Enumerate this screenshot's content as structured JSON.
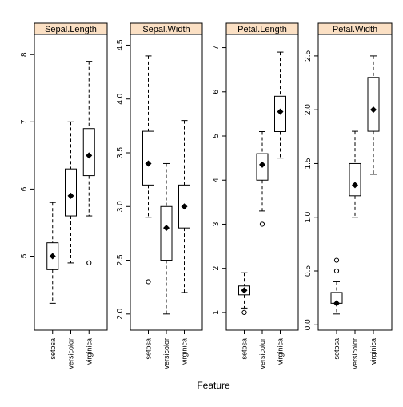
{
  "chart_data": {
    "type": "boxplot",
    "xlabel": "Feature",
    "categories": [
      "setosa",
      "versicolor",
      "virginica"
    ],
    "strip_color": "#fbe0c4",
    "panels": [
      {
        "title": "Sepal.Length",
        "ylim": [
          3.9,
          8.3
        ],
        "yticks": [
          5,
          6,
          7,
          8
        ],
        "groups": [
          {
            "category": "setosa",
            "lower_whisker": 4.3,
            "q1": 4.8,
            "median": 5.0,
            "q3": 5.2,
            "upper_whisker": 5.8,
            "mean": 5.0,
            "outliers": []
          },
          {
            "category": "versicolor",
            "lower_whisker": 4.9,
            "q1": 5.6,
            "median": 5.9,
            "q3": 6.3,
            "upper_whisker": 7.0,
            "mean": 5.9,
            "outliers": []
          },
          {
            "category": "virginica",
            "lower_whisker": 5.6,
            "q1": 6.2,
            "median": 6.5,
            "q3": 6.9,
            "upper_whisker": 7.9,
            "mean": 6.5,
            "outliers": [
              4.9
            ]
          }
        ]
      },
      {
        "title": "Sepal.Width",
        "ylim": [
          1.85,
          4.6
        ],
        "yticks": [
          2.0,
          2.5,
          3.0,
          3.5,
          4.0,
          4.5
        ],
        "tick_labels": [
          "2.0",
          "2.5",
          "3.0",
          "3.5",
          "4.0",
          "4.5"
        ],
        "groups": [
          {
            "category": "setosa",
            "lower_whisker": 2.9,
            "q1": 3.2,
            "median": 3.4,
            "q3": 3.7,
            "upper_whisker": 4.4,
            "mean": 3.4,
            "outliers": [
              2.3
            ]
          },
          {
            "category": "versicolor",
            "lower_whisker": 2.0,
            "q1": 2.5,
            "median": 2.8,
            "q3": 3.0,
            "upper_whisker": 3.4,
            "mean": 2.8,
            "outliers": []
          },
          {
            "category": "virginica",
            "lower_whisker": 2.2,
            "q1": 2.8,
            "median": 3.0,
            "q3": 3.2,
            "upper_whisker": 3.8,
            "mean": 3.0,
            "outliers": []
          }
        ]
      },
      {
        "title": "Petal.Length",
        "ylim": [
          0.6,
          7.3
        ],
        "yticks": [
          1,
          2,
          3,
          4,
          5,
          6,
          7
        ],
        "groups": [
          {
            "category": "setosa",
            "lower_whisker": 1.1,
            "q1": 1.4,
            "median": 1.5,
            "q3": 1.6,
            "upper_whisker": 1.9,
            "mean": 1.5,
            "outliers": [
              1.0
            ]
          },
          {
            "category": "versicolor",
            "lower_whisker": 3.3,
            "q1": 4.0,
            "median": 4.35,
            "q3": 4.6,
            "upper_whisker": 5.1,
            "mean": 4.35,
            "outliers": [
              3.0
            ]
          },
          {
            "category": "virginica",
            "lower_whisker": 4.5,
            "q1": 5.1,
            "median": 5.55,
            "q3": 5.9,
            "upper_whisker": 6.9,
            "mean": 5.55,
            "outliers": []
          }
        ]
      },
      {
        "title": "Petal.Width",
        "ylim": [
          -0.05,
          2.7
        ],
        "yticks": [
          0.0,
          0.5,
          1.0,
          1.5,
          2.0,
          2.5
        ],
        "tick_labels": [
          "0.0",
          "0.5",
          "1.0",
          "1.5",
          "2.0",
          "2.5"
        ],
        "groups": [
          {
            "category": "setosa",
            "lower_whisker": 0.1,
            "q1": 0.2,
            "median": 0.2,
            "q3": 0.3,
            "upper_whisker": 0.4,
            "mean": 0.2,
            "outliers": [
              0.5,
              0.6
            ]
          },
          {
            "category": "versicolor",
            "lower_whisker": 1.0,
            "q1": 1.2,
            "median": 1.3,
            "q3": 1.5,
            "upper_whisker": 1.8,
            "mean": 1.3,
            "outliers": []
          },
          {
            "category": "virginica",
            "lower_whisker": 1.4,
            "q1": 1.8,
            "median": 2.0,
            "q3": 2.3,
            "upper_whisker": 2.5,
            "mean": 2.0,
            "outliers": []
          }
        ]
      }
    ]
  }
}
